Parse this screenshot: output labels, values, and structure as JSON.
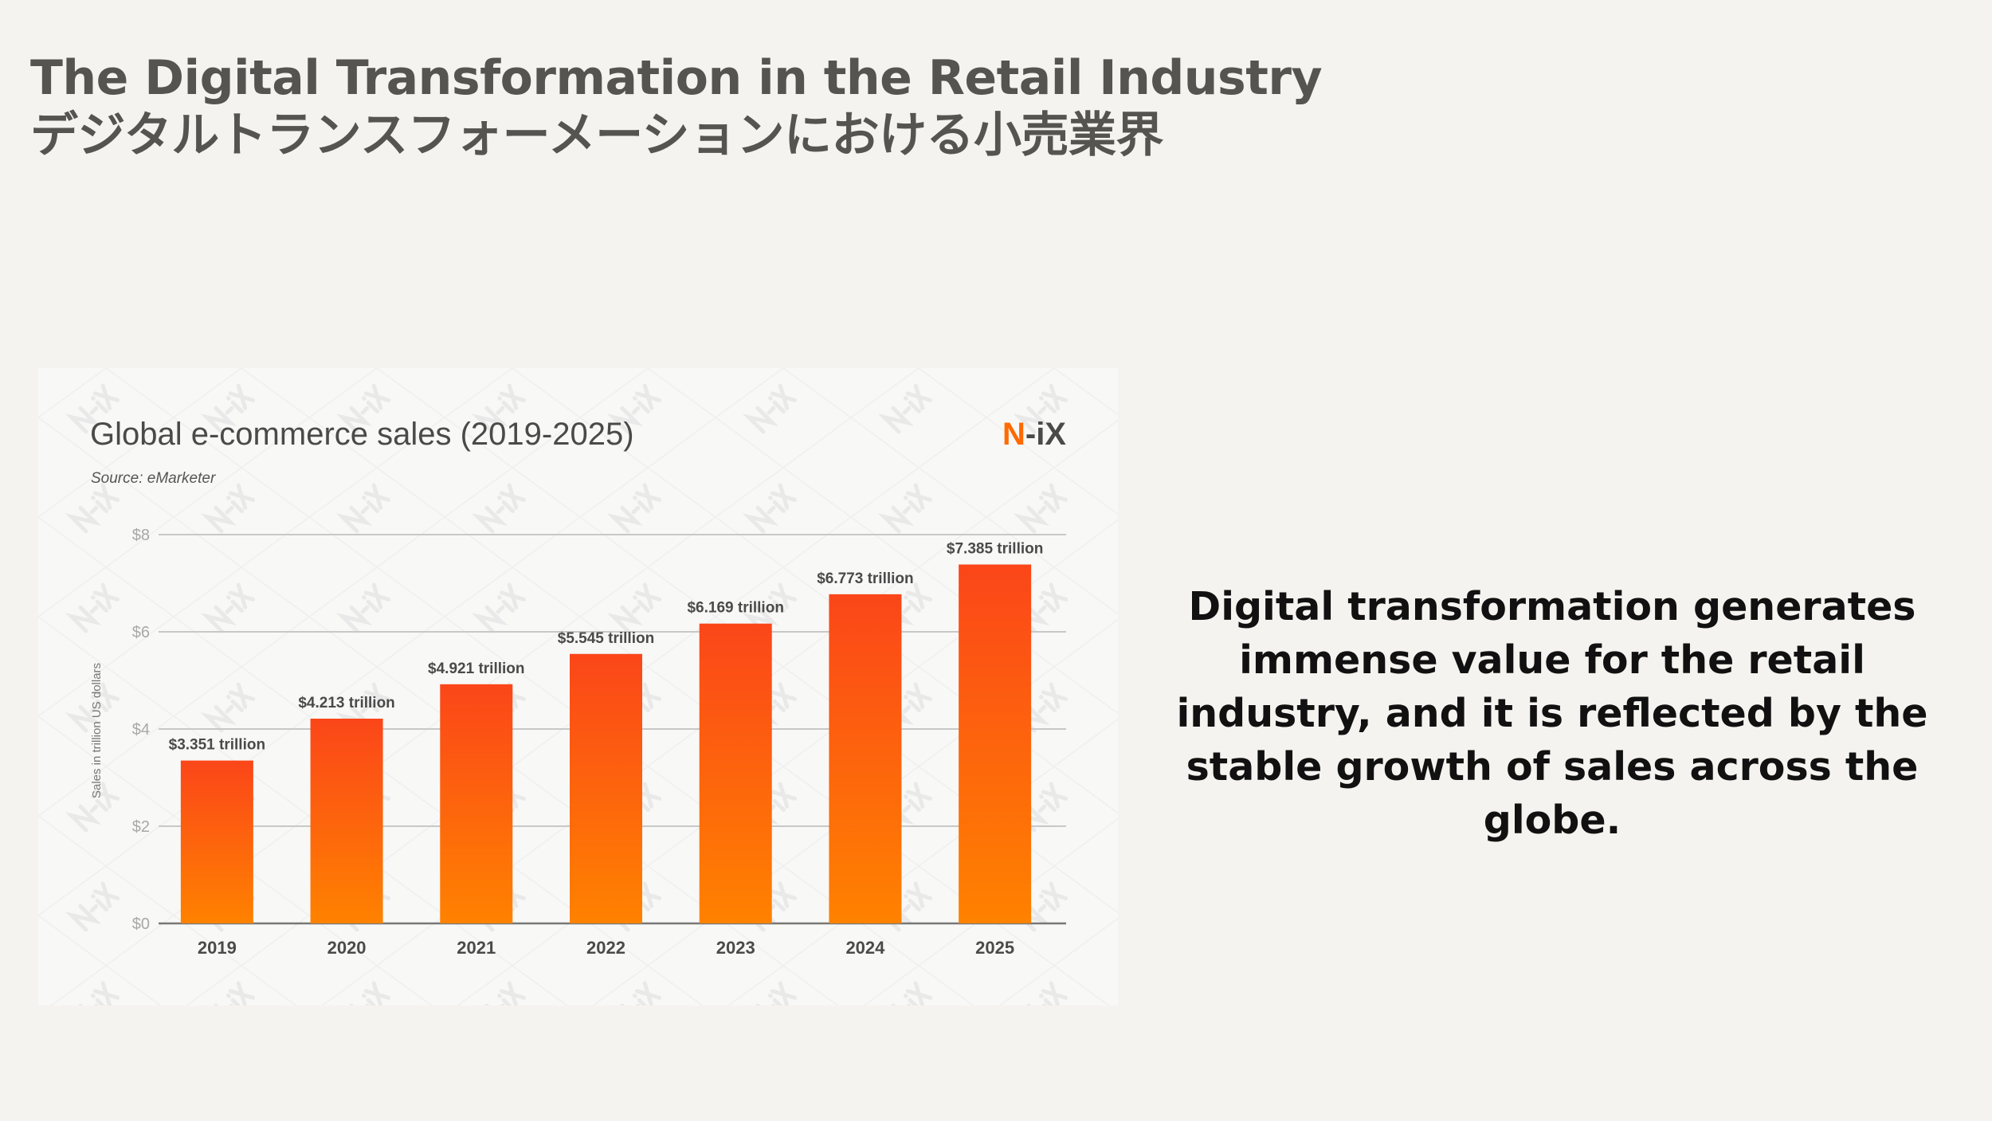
{
  "slide": {
    "title_en": "The Digital Transformation in the Retail Industry",
    "title_ja": "デジタルトランスフォーメーションにおける小売業界",
    "body_text": "Digital transformation generates immense value for the retail industry, and it is reflected by the stable growth of sales across the globe."
  },
  "chart_data": {
    "type": "bar",
    "title": "Global e-commerce sales (2019-2025)",
    "subtitle": "Source: eMarketer",
    "brand_logo": "N-iX",
    "watermark": "N-iX",
    "ylabel": "Sales in trillion US dollars",
    "xlabel": "",
    "ylim": [
      0,
      8
    ],
    "yticks": [
      0,
      2,
      4,
      6,
      8
    ],
    "ytick_labels": [
      "$0",
      "$2",
      "$4",
      "$6",
      "$8"
    ],
    "grid": true,
    "categories": [
      "2019",
      "2020",
      "2021",
      "2022",
      "2023",
      "2024",
      "2025"
    ],
    "values": [
      3.351,
      4.213,
      4.921,
      5.545,
      6.169,
      6.773,
      7.385
    ],
    "data_labels": [
      "$3.351 trillion",
      "$4.213 trillion",
      "$4.921 trillion",
      "$5.545 trillion",
      "$6.169 trillion",
      "$6.773 trillion",
      "$7.385 trillion"
    ],
    "colors": {
      "bar_top": "#fb4619",
      "bar_bottom": "#ff8200",
      "logo_accent": "#ff6a00",
      "text": "#4a4a4a",
      "tick": "#a8a8a8",
      "grid": "#c8c8c8"
    }
  }
}
